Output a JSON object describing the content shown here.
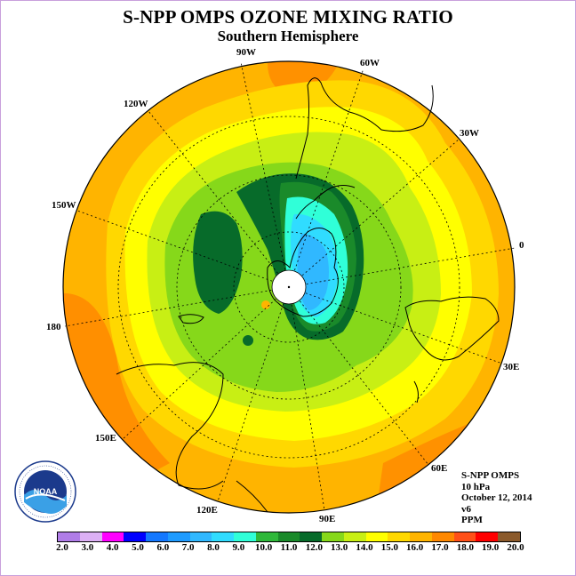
{
  "title": "S-NPP OMPS OZONE MIXING RATIO",
  "subtitle": "Southern Hemisphere",
  "map": {
    "projection": "polar-stereographic-south",
    "longitude_labels": [
      "90W",
      "60W",
      "30W",
      "0",
      "30E",
      "60E",
      "90E",
      "120E",
      "150E",
      "180",
      "150W",
      "120W"
    ],
    "pole_marker": "white-circle"
  },
  "info": {
    "instrument": "S-NPP OMPS",
    "pressure": "10 hPa",
    "date": "October 12, 2014",
    "version": "v6",
    "units": "PPM"
  },
  "logo": {
    "name": "NOAA",
    "ring_text": "NATIONAL OCEANIC AND ATMOSPHERIC ADMINISTRATION · U.S. DEPARTMENT OF COMMERCE"
  },
  "colorbar": {
    "labels": [
      "2.0",
      "3.0",
      "4.0",
      "5.0",
      "6.0",
      "7.0",
      "8.0",
      "9.0",
      "10.0",
      "11.0",
      "12.0",
      "13.0",
      "14.0",
      "15.0",
      "16.0",
      "17.0",
      "18.0",
      "19.0",
      "20.0"
    ],
    "colors": [
      "#b07de8",
      "#dcb0f4",
      "#ff00ff",
      "#0000ff",
      "#1478ff",
      "#1e9bff",
      "#30b8ff",
      "#30dcff",
      "#30ffd8",
      "#2fb83a",
      "#1a8a2a",
      "#076b2a",
      "#86d81a",
      "#c8ef14",
      "#ffff00",
      "#ffd800",
      "#ffb400",
      "#ff8800",
      "#ff5018",
      "#ff0000",
      "#8b5a2b"
    ]
  }
}
